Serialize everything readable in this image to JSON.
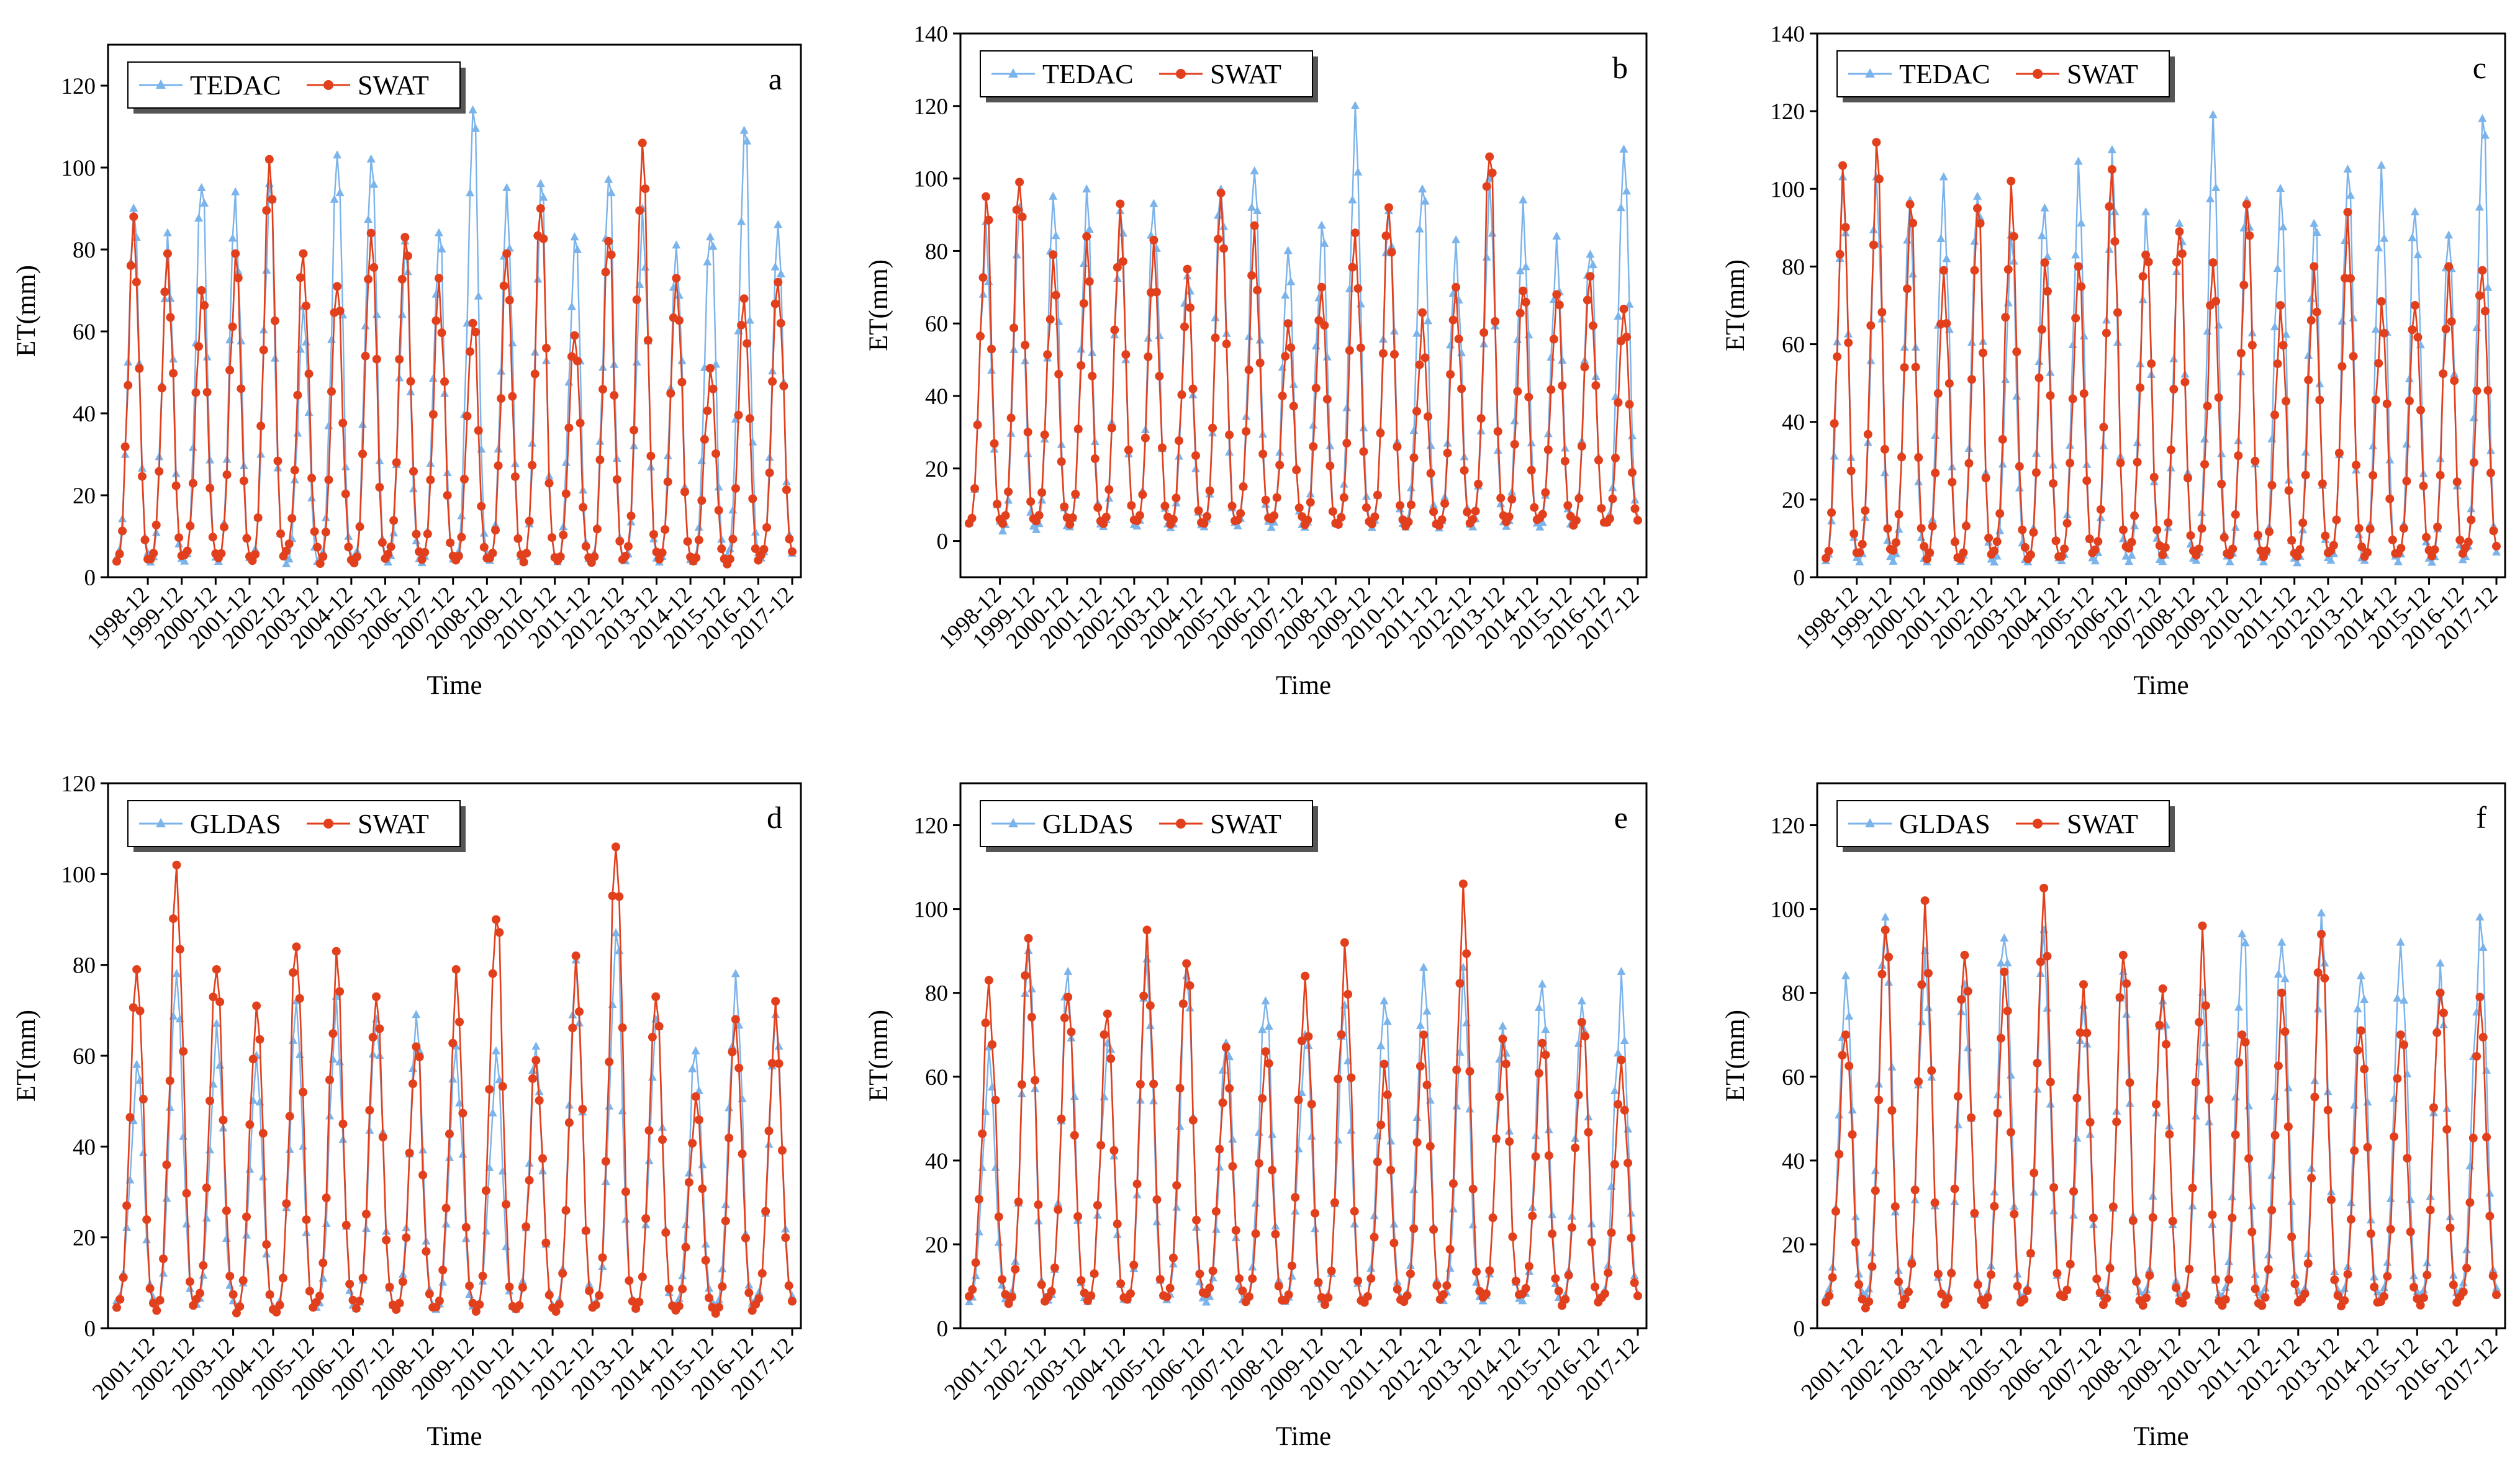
{
  "figure": {
    "ylabel": "ET(mm)",
    "xlabel": "Time"
  },
  "colors": {
    "blue": "#7BB3EB",
    "red": "#E2401C",
    "legend_shadow": "#555555"
  },
  "chart_data": [
    {
      "type": "line",
      "panel": "a",
      "xlabel": "Time",
      "ylabel": "ET(mm)",
      "ylim": [
        0,
        130
      ],
      "yticks": [
        0,
        20,
        40,
        60,
        80,
        100,
        120
      ],
      "legend": {
        "position": "top-left",
        "entries": [
          "TEDAC",
          "SWAT"
        ]
      },
      "x_start": "1998-01",
      "x_end": "2017-12",
      "xticks": [
        "1998-12",
        "1999-12",
        "2000-12",
        "2001-12",
        "2002-12",
        "2003-12",
        "2004-12",
        "2005-12",
        "2006-12",
        "2007-12",
        "2008-12",
        "2009-12",
        "2010-12",
        "2011-12",
        "2012-12",
        "2013-12",
        "2014-12",
        "2015-12",
        "2016-12",
        "2017-12"
      ],
      "series": [
        {
          "name": "TEDAC",
          "color": "blue",
          "marker": "triangle",
          "annual_peaks": [
            90,
            84,
            95,
            94,
            96,
            66,
            103,
            102,
            82,
            84,
            114,
            95,
            96,
            83,
            97,
            90,
            81,
            83,
            109,
            86
          ],
          "annual_mins": [
            3,
            2,
            2,
            2,
            3,
            2,
            2,
            2,
            2,
            2,
            2,
            2,
            2,
            2,
            2,
            2,
            2,
            2,
            3,
            3
          ]
        },
        {
          "name": "SWAT",
          "color": "red",
          "marker": "circle",
          "annual_peaks": [
            88,
            79,
            70,
            79,
            102,
            79,
            71,
            84,
            83,
            73,
            62,
            79,
            90,
            59,
            82,
            106,
            73,
            51,
            68,
            72
          ],
          "annual_mins": [
            2,
            3,
            4,
            3,
            2,
            5,
            2,
            2,
            4,
            3,
            3,
            3,
            2,
            3,
            2,
            3,
            3,
            3,
            2,
            4
          ]
        }
      ]
    },
    {
      "type": "line",
      "panel": "b",
      "xlabel": "Time",
      "ylabel": "ET(mm)",
      "ylim": [
        -10,
        140
      ],
      "yticks": [
        0,
        20,
        40,
        60,
        80,
        100,
        120,
        140
      ],
      "legend": {
        "position": "top-left",
        "entries": [
          "TEDAC",
          "SWAT"
        ]
      },
      "x_start": "1998-01",
      "x_end": "2017-12",
      "xticks": [
        "1998-12",
        "1999-12",
        "2000-12",
        "2001-12",
        "2002-12",
        "2003-12",
        "2004-12",
        "2005-12",
        "2006-12",
        "2007-12",
        "2008-12",
        "2009-12",
        "2010-12",
        "2011-12",
        "2012-12",
        "2013-12",
        "2014-12",
        "2015-12",
        "2016-12",
        "2017-12"
      ],
      "series": [
        {
          "name": "TEDAC",
          "color": "blue",
          "marker": "triangle",
          "annual_peaks": [
            88,
            92,
            95,
            97,
            91,
            93,
            73,
            97,
            102,
            80,
            87,
            120,
            91,
            97,
            83,
            100,
            94,
            84,
            79,
            108
          ],
          "annual_mins": [
            3,
            1,
            1,
            2,
            2,
            2,
            2,
            2,
            2,
            2,
            2,
            2,
            2,
            2,
            2,
            2,
            2,
            2,
            3,
            3
          ]
        },
        {
          "name": "SWAT",
          "color": "red",
          "marker": "circle",
          "annual_peaks": [
            95,
            99,
            79,
            84,
            93,
            83,
            75,
            96,
            87,
            60,
            70,
            85,
            92,
            63,
            70,
            106,
            69,
            68,
            73,
            64
          ],
          "annual_mins": [
            3,
            3,
            4,
            3,
            3,
            4,
            3,
            3,
            4,
            5,
            3,
            3,
            3,
            3,
            3,
            4,
            4,
            5,
            3,
            4
          ]
        }
      ]
    },
    {
      "type": "line",
      "panel": "c",
      "xlabel": "Time",
      "ylabel": "ET(mm)",
      "ylim": [
        0,
        140
      ],
      "yticks": [
        0,
        20,
        40,
        60,
        80,
        100,
        120,
        140
      ],
      "legend": {
        "position": "top-left",
        "entries": [
          "TEDAC",
          "SWAT"
        ]
      },
      "x_start": "1998-01",
      "x_end": "2017-12",
      "xticks": [
        "1998-12",
        "1999-12",
        "2000-12",
        "2001-12",
        "2002-12",
        "2003-12",
        "2004-12",
        "2005-12",
        "2006-12",
        "2007-12",
        "2008-12",
        "2009-12",
        "2010-12",
        "2011-12",
        "2012-12",
        "2013-12",
        "2014-12",
        "2015-12",
        "2016-12",
        "2017-12"
      ],
      "series": [
        {
          "name": "TEDAC",
          "color": "blue",
          "marker": "triangle",
          "annual_peaks": [
            103,
            103,
            97,
            103,
            98,
            88,
            95,
            107,
            110,
            94,
            91,
            119,
            97,
            100,
            91,
            105,
            106,
            94,
            88,
            118
          ],
          "annual_mins": [
            2,
            2,
            2,
            2,
            2,
            2,
            2,
            2,
            2,
            2,
            2,
            2,
            2,
            2,
            2,
            2,
            2,
            2,
            2,
            3
          ]
        },
        {
          "name": "SWAT",
          "color": "red",
          "marker": "circle",
          "annual_peaks": [
            106,
            112,
            96,
            79,
            95,
            102,
            81,
            80,
            105,
            83,
            89,
            81,
            96,
            70,
            80,
            94,
            71,
            70,
            80,
            79
          ],
          "annual_mins": [
            3,
            4,
            5,
            3,
            3,
            5,
            3,
            4,
            5,
            6,
            4,
            4,
            4,
            4,
            4,
            5,
            4,
            5,
            4,
            6
          ]
        }
      ]
    },
    {
      "type": "line",
      "panel": "d",
      "xlabel": "Time",
      "ylabel": "ET(mm)",
      "ylim": [
        0,
        120
      ],
      "yticks": [
        0,
        20,
        40,
        60,
        80,
        100,
        120
      ],
      "legend": {
        "position": "top-left",
        "entries": [
          "GLDAS",
          "SWAT"
        ]
      },
      "x_start": "2001-01",
      "x_end": "2017-12",
      "xticks": [
        "2001-12",
        "2002-12",
        "2003-12",
        "2004-12",
        "2005-12",
        "2006-12",
        "2007-12",
        "2008-12",
        "2009-12",
        "2010-12",
        "2011-12",
        "2012-12",
        "2013-12",
        "2014-12",
        "2015-12",
        "2016-12",
        "2017-12"
      ],
      "series": [
        {
          "name": "GLDAS",
          "color": "blue",
          "marker": "triangle",
          "annual_peaks": [
            58,
            78,
            67,
            60,
            72,
            73,
            68,
            69,
            62,
            61,
            62,
            81,
            87,
            68,
            61,
            78,
            69
          ],
          "annual_mins": [
            5,
            3,
            4,
            3,
            3,
            3,
            3,
            3,
            3,
            3,
            3,
            3,
            4,
            3,
            4,
            3,
            5
          ]
        },
        {
          "name": "SWAT",
          "color": "red",
          "marker": "circle",
          "annual_peaks": [
            79,
            102,
            79,
            71,
            84,
            83,
            73,
            62,
            79,
            90,
            59,
            82,
            106,
            73,
            51,
            68,
            72
          ],
          "annual_mins": [
            3,
            2,
            5,
            2,
            2,
            4,
            3,
            3,
            3,
            2,
            3,
            2,
            3,
            3,
            3,
            2,
            4
          ]
        }
      ]
    },
    {
      "type": "line",
      "panel": "e",
      "xlabel": "Time",
      "ylabel": "ET(mm)",
      "ylim": [
        0,
        130
      ],
      "yticks": [
        0,
        20,
        40,
        60,
        80,
        100,
        120
      ],
      "legend": {
        "position": "top-left",
        "entries": [
          "GLDAS",
          "SWAT"
        ]
      },
      "x_start": "2001-01",
      "x_end": "2017-12",
      "xticks": [
        "2001-12",
        "2002-12",
        "2003-12",
        "2004-12",
        "2005-12",
        "2006-12",
        "2007-12",
        "2008-12",
        "2009-12",
        "2010-12",
        "2011-12",
        "2012-12",
        "2013-12",
        "2014-12",
        "2015-12",
        "2016-12",
        "2017-12"
      ],
      "series": [
        {
          "name": "GLDAS",
          "color": "blue",
          "marker": "triangle",
          "annual_peaks": [
            67,
            90,
            85,
            68,
            88,
            84,
            68,
            78,
            70,
            77,
            78,
            86,
            86,
            72,
            82,
            78,
            85
          ],
          "annual_mins": [
            5,
            5,
            5,
            5,
            5,
            5,
            5,
            5,
            5,
            5,
            5,
            5,
            5,
            5,
            5,
            5,
            6
          ]
        },
        {
          "name": "SWAT",
          "color": "red",
          "marker": "circle",
          "annual_peaks": [
            83,
            93,
            79,
            75,
            95,
            87,
            67,
            66,
            84,
            92,
            63,
            70,
            106,
            69,
            68,
            73,
            64
          ],
          "annual_mins": [
            6,
            4,
            6,
            5,
            5,
            6,
            7,
            5,
            5,
            4,
            5,
            5,
            6,
            6,
            7,
            4,
            6
          ]
        }
      ]
    },
    {
      "type": "line",
      "panel": "f",
      "xlabel": "Time",
      "ylabel": "ET(mm)",
      "ylim": [
        0,
        130
      ],
      "yticks": [
        0,
        20,
        40,
        60,
        80,
        100,
        120
      ],
      "legend": {
        "position": "top-left",
        "entries": [
          "GLDAS",
          "SWAT"
        ]
      },
      "x_start": "2001-01",
      "x_end": "2017-12",
      "xticks": [
        "2001-12",
        "2002-12",
        "2003-12",
        "2004-12",
        "2005-12",
        "2006-12",
        "2007-12",
        "2008-12",
        "2009-12",
        "2010-12",
        "2011-12",
        "2012-12",
        "2013-12",
        "2014-12",
        "2015-12",
        "2016-12",
        "2017-12"
      ],
      "series": [
        {
          "name": "GLDAS",
          "color": "blue",
          "marker": "triangle",
          "annual_peaks": [
            84,
            98,
            90,
            82,
            93,
            95,
            77,
            85,
            78,
            80,
            94,
            92,
            99,
            84,
            92,
            87,
            98
          ],
          "annual_mins": [
            6,
            6,
            6,
            5,
            5,
            6,
            6,
            6,
            6,
            6,
            6,
            6,
            6,
            6,
            6,
            6,
            7
          ]
        },
        {
          "name": "SWAT",
          "color": "red",
          "marker": "circle",
          "annual_peaks": [
            70,
            95,
            102,
            89,
            85,
            105,
            82,
            89,
            81,
            96,
            70,
            80,
            94,
            71,
            70,
            80,
            79
          ],
          "annual_mins": [
            5,
            3,
            5,
            4,
            4,
            5,
            6,
            4,
            4,
            4,
            4,
            4,
            5,
            4,
            5,
            4,
            6
          ]
        }
      ]
    }
  ]
}
